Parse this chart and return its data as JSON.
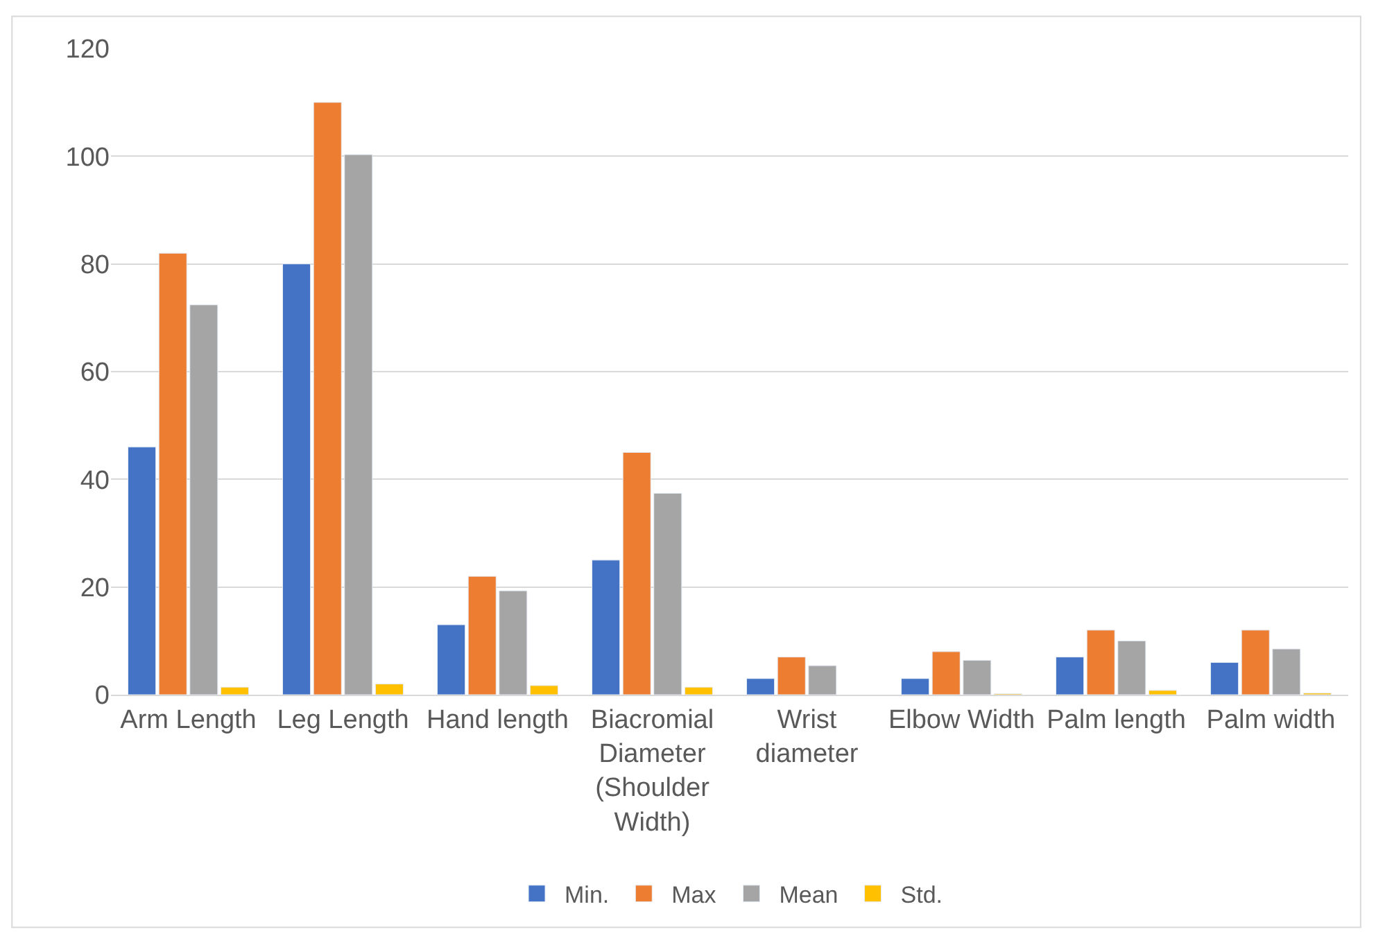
{
  "chart_data": {
    "type": "bar",
    "categories": [
      "Arm Length",
      "Leg Length",
      "Hand length",
      "Biacromial Diameter (Shoulder Width)",
      "Wrist diameter",
      "Elbow Width",
      "Palm length",
      "Palm width"
    ],
    "series": [
      {
        "name": "Min.",
        "color": "#4472c4",
        "values": [
          46,
          80,
          13,
          25,
          3,
          3,
          7,
          6
        ]
      },
      {
        "name": "Max",
        "color": "#ed7d31",
        "values": [
          82,
          110,
          22,
          45,
          7,
          8,
          12,
          12
        ]
      },
      {
        "name": "Mean",
        "color": "#a5a5a5",
        "values": [
          72.4,
          100.3,
          19.3,
          37.4,
          5.4,
          6.4,
          10,
          8.5
        ]
      },
      {
        "name": "Std.",
        "color": "#ffc000",
        "values": [
          1.4,
          2,
          1.7,
          1.4,
          null,
          0.2,
          0.8,
          0.3
        ]
      }
    ],
    "ylim": [
      0,
      120
    ],
    "yticks": [
      0,
      20,
      40,
      60,
      80,
      100,
      120
    ],
    "grid": "y",
    "legend": "bottom"
  }
}
